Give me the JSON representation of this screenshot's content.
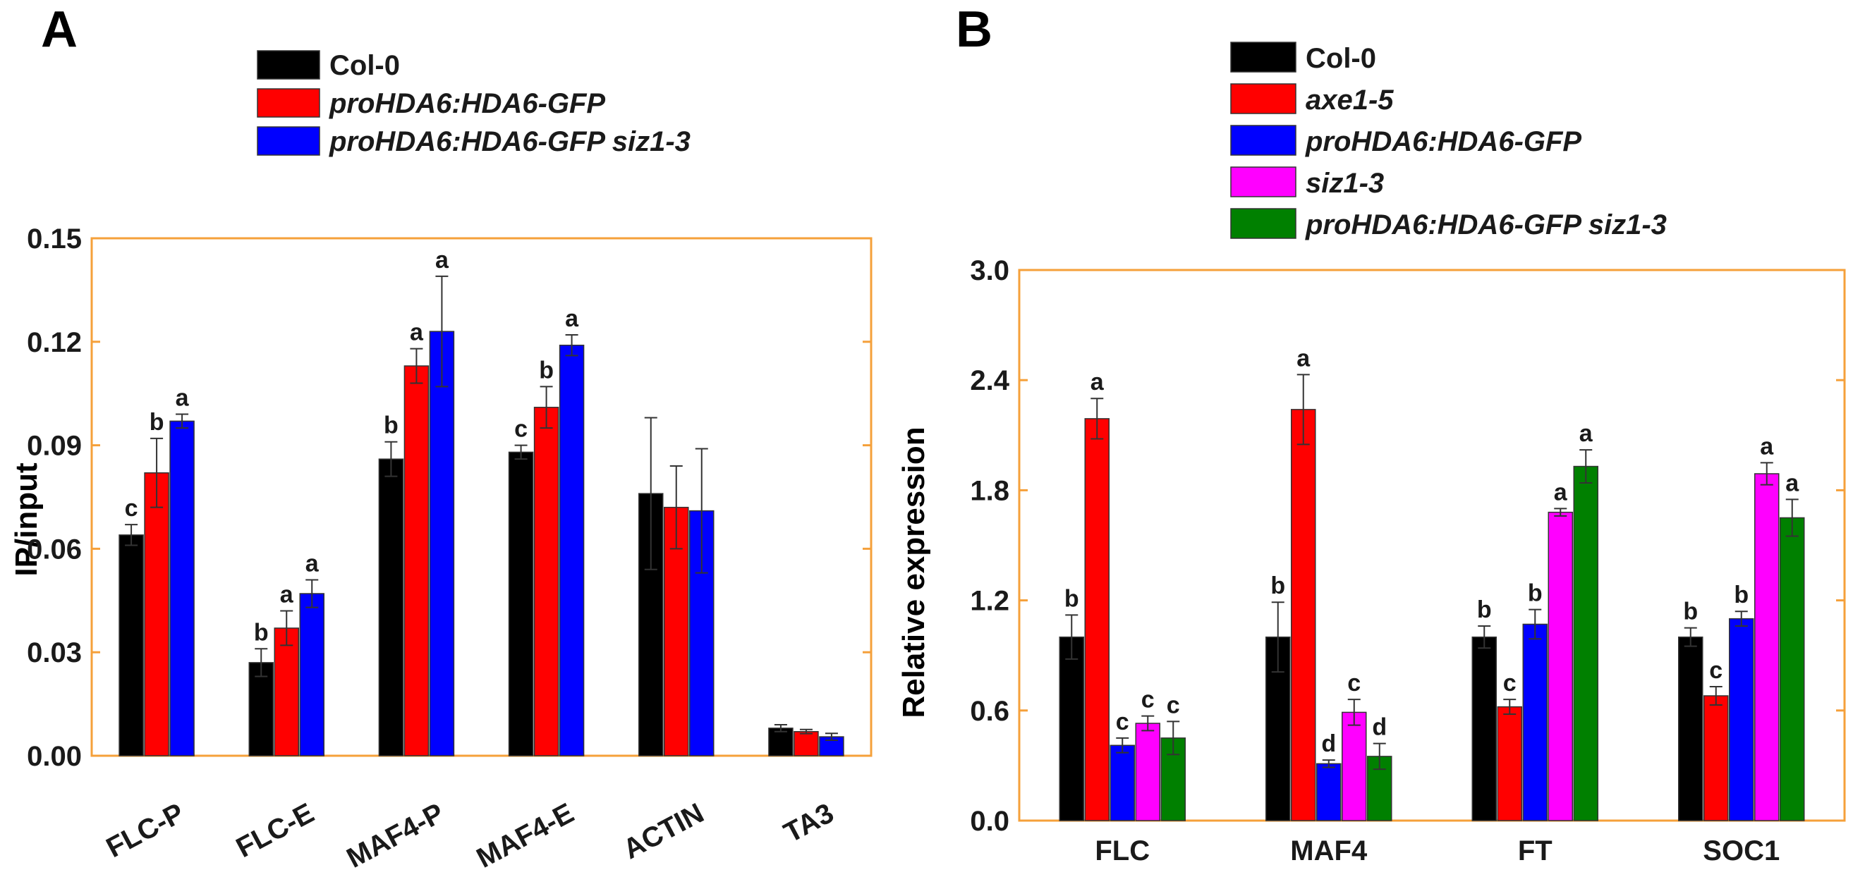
{
  "panels": [
    {
      "letter": "A",
      "chart_data": {
        "type": "bar",
        "ylabel": "IP/input",
        "xlabel": "",
        "ylim": [
          0,
          0.15
        ],
        "yticks": [
          "0.00",
          "0.03",
          "0.06",
          "0.09",
          "0.12",
          "0.15"
        ],
        "categories": [
          "FLC-P",
          "FLC-E",
          "MAF4-P",
          "MAF4-E",
          "ACTIN",
          "TA3"
        ],
        "series": [
          {
            "name": "Col-0",
            "italic": false,
            "color": "#000000",
            "values": [
              0.064,
              0.027,
              0.086,
              0.088,
              0.076,
              0.008
            ],
            "errors": [
              0.003,
              0.004,
              0.005,
              0.002,
              0.022,
              0.001
            ],
            "letters": [
              "c",
              "b",
              "b",
              "c",
              "",
              ""
            ]
          },
          {
            "name": "proHDA6:HDA6-GFP",
            "italic": true,
            "color": "#ff0000",
            "values": [
              0.082,
              0.037,
              0.113,
              0.101,
              0.072,
              0.007
            ],
            "errors": [
              0.01,
              0.005,
              0.005,
              0.006,
              0.012,
              0.0006
            ],
            "letters": [
              "b",
              "a",
              "a",
              "b",
              "",
              ""
            ]
          },
          {
            "name": "proHDA6:HDA6-GFP siz1-3",
            "italic": true,
            "color": "#0000ff",
            "values": [
              0.097,
              0.047,
              0.123,
              0.119,
              0.071,
              0.0055
            ],
            "errors": [
              0.002,
              0.004,
              0.016,
              0.003,
              0.018,
              0.001
            ],
            "letters": [
              "a",
              "a",
              "a",
              "a",
              "",
              ""
            ]
          }
        ]
      }
    },
    {
      "letter": "B",
      "chart_data": {
        "type": "bar",
        "ylabel": "Relative expression",
        "xlabel": "",
        "ylim": [
          0,
          3.0
        ],
        "yticks": [
          "0.0",
          "0.6",
          "1.2",
          "1.8",
          "2.4",
          "3.0"
        ],
        "categories": [
          "FLC",
          "MAF4",
          "FT",
          "SOC1"
        ],
        "series": [
          {
            "name": "Col-0",
            "italic": false,
            "color": "#000000",
            "values": [
              1.0,
              1.0,
              1.0,
              1.0
            ],
            "errors": [
              0.12,
              0.19,
              0.06,
              0.05
            ],
            "letters": [
              "b",
              "b",
              "b",
              "b"
            ]
          },
          {
            "name": "axe1-5",
            "italic": true,
            "color": "#ff0000",
            "values": [
              2.19,
              2.24,
              0.62,
              0.68
            ],
            "errors": [
              0.11,
              0.19,
              0.04,
              0.05
            ],
            "letters": [
              "a",
              "a",
              "c",
              "c"
            ]
          },
          {
            "name": "proHDA6:HDA6-GFP",
            "italic": true,
            "color": "#0000ff",
            "values": [
              0.41,
              0.31,
              1.07,
              1.1
            ],
            "errors": [
              0.04,
              0.02,
              0.08,
              0.04
            ],
            "letters": [
              "c",
              "d",
              "b",
              "b"
            ]
          },
          {
            "name": "siz1-3",
            "italic": true,
            "color": "#ff00ff",
            "values": [
              0.53,
              0.59,
              1.68,
              1.89
            ],
            "errors": [
              0.04,
              0.07,
              0.02,
              0.06
            ],
            "letters": [
              "c",
              "c",
              "a",
              "a"
            ]
          },
          {
            "name": "proHDA6:HDA6-GFP siz1-3",
            "italic": true,
            "color": "#008000",
            "values": [
              0.45,
              0.35,
              1.93,
              1.65
            ],
            "errors": [
              0.09,
              0.07,
              0.09,
              0.1
            ],
            "letters": [
              "c",
              "d",
              "a",
              "a"
            ]
          }
        ]
      }
    }
  ],
  "style": {
    "frame_color": "#f5a03a",
    "text_color": "#1a1a1a"
  }
}
